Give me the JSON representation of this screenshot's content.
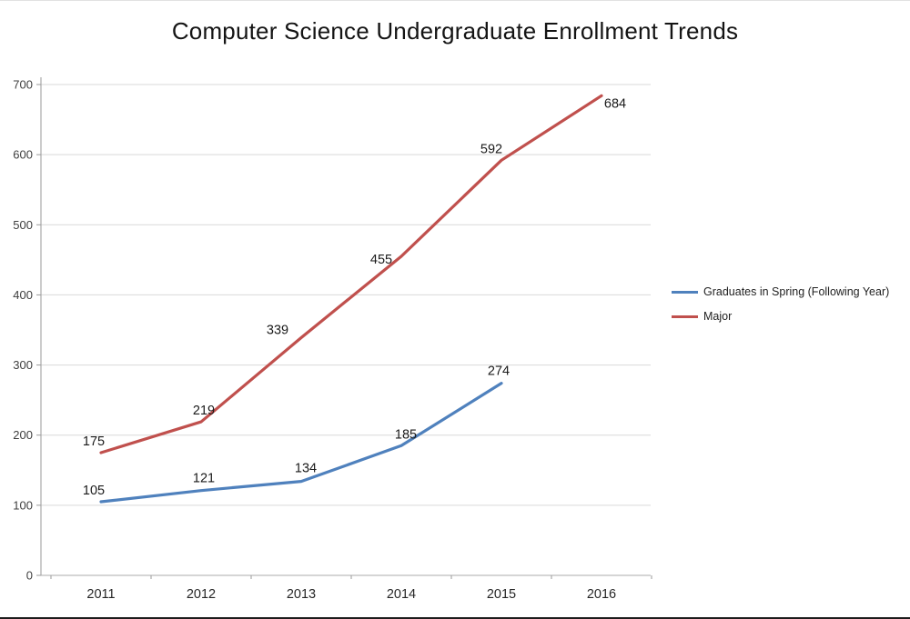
{
  "chart_data": {
    "type": "line",
    "title": "Computer Science Undergraduate Enrollment Trends",
    "categories": [
      "2011",
      "2012",
      "2013",
      "2014",
      "2015",
      "2016"
    ],
    "series": [
      {
        "name": "Graduates in Spring (Following Year)",
        "color": "#4f81bd",
        "values": [
          105,
          121,
          134,
          185,
          274,
          null
        ],
        "label_offsets": [
          [
            -8,
            -8
          ],
          [
            3,
            -9
          ],
          [
            5,
            -10
          ],
          [
            5,
            -8
          ],
          [
            -3,
            -9
          ]
        ]
      },
      {
        "name": "Major",
        "color": "#c0504d",
        "values": [
          175,
          219,
          339,
          455,
          592,
          684
        ],
        "label_offsets": [
          [
            -8,
            -8
          ],
          [
            3,
            -8
          ],
          [
            -26,
            -4
          ],
          [
            -22,
            8
          ],
          [
            -11,
            -8
          ],
          [
            15,
            13
          ]
        ]
      }
    ],
    "xlabel": "",
    "ylabel": "",
    "ylim": [
      0,
      700
    ],
    "yticks": [
      0,
      100,
      200,
      300,
      400,
      500,
      600,
      700
    ],
    "grid": true,
    "legend_position": "right"
  }
}
